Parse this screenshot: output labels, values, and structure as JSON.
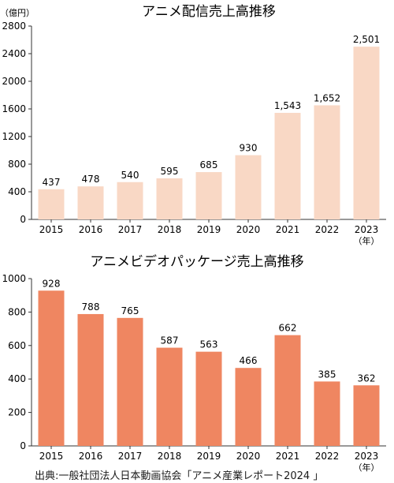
{
  "chart_data": [
    {
      "type": "bar",
      "title": "アニメ配信売上高推移",
      "unit_label": "（億円）",
      "categories": [
        "2015",
        "2016",
        "2017",
        "2018",
        "2019",
        "2020",
        "2021",
        "2022",
        "2023"
      ],
      "year_suffix": "（年）",
      "values": [
        437,
        478,
        540,
        595,
        685,
        930,
        1543,
        1652,
        2501
      ],
      "value_labels": [
        "437",
        "478",
        "540",
        "595",
        "685",
        "930",
        "1,543",
        "1,652",
        "2,501"
      ],
      "yticks": [
        0,
        400,
        800,
        1200,
        1600,
        2000,
        2400,
        2800
      ],
      "ylim": [
        0,
        2800
      ],
      "xlabel": "",
      "ylabel": "",
      "grid": false,
      "bar_color": "#f9d8c5"
    },
    {
      "type": "bar",
      "title": "アニメビデオパッケージ売上高推移",
      "categories": [
        "2015",
        "2016",
        "2017",
        "2018",
        "2019",
        "2020",
        "2021",
        "2022",
        "2023"
      ],
      "year_suffix": "（年）",
      "values": [
        928,
        788,
        765,
        587,
        563,
        466,
        662,
        385,
        362
      ],
      "value_labels": [
        "928",
        "788",
        "765",
        "587",
        "563",
        "466",
        "662",
        "385",
        "362"
      ],
      "yticks": [
        0,
        200,
        400,
        600,
        800,
        1000
      ],
      "ylim": [
        0,
        1000
      ],
      "xlabel": "",
      "ylabel": "",
      "grid": false,
      "bar_color": "#ef8661"
    }
  ],
  "source": "出典:一般社団法人日本動画協会「アニメ産業レポート2024 」"
}
